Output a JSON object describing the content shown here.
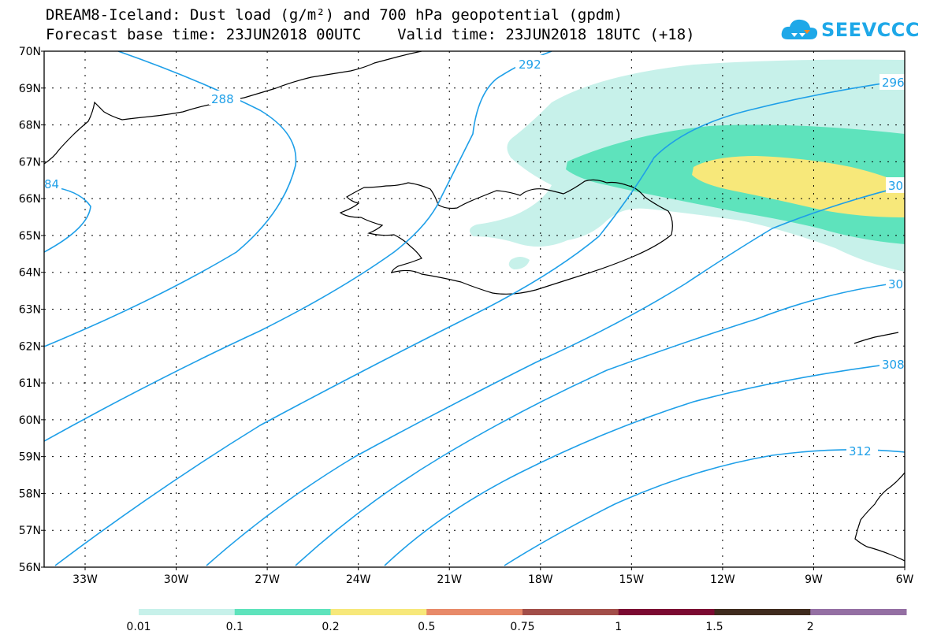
{
  "title_line1": "DREAM8-Iceland: Dust load (g/m²) and 700 hPa geopotential (gpdm)",
  "title_line2": "Forecast base time: 23JUN2018 00UTC    Valid time: 23JUN2018 18UTC (+18)",
  "logo_text": "SEEVCCC",
  "lat_labels": [
    "70N",
    "69N",
    "68N",
    "67N",
    "66N",
    "65N",
    "64N",
    "63N",
    "62N",
    "61N",
    "60N",
    "59N",
    "58N",
    "57N",
    "56N"
  ],
  "lon_labels": [
    "33W",
    "30W",
    "27W",
    "24W",
    "21W",
    "18W",
    "15W",
    "12W",
    "9W",
    "6W"
  ],
  "contour_labels": [
    "84",
    "288",
    "292",
    "296",
    "30",
    "30",
    "308",
    "312"
  ],
  "legend": {
    "ticks": [
      "0.01",
      "0.1",
      "0.2",
      "0.5",
      "0.75",
      "1",
      "1.5",
      "2"
    ],
    "colors": [
      "#c7f1ea",
      "#5ee3bc",
      "#f7e87a",
      "#e88a69",
      "#a24e49",
      "#7b0a32",
      "#3f2b1e",
      "#946fa3"
    ]
  },
  "colors": {
    "contour": "#1e9fe8",
    "coast": "#000000",
    "dust_low": "#c7f1ea",
    "dust_mid": "#5ee3bc",
    "dust_high": "#f7e87a"
  }
}
